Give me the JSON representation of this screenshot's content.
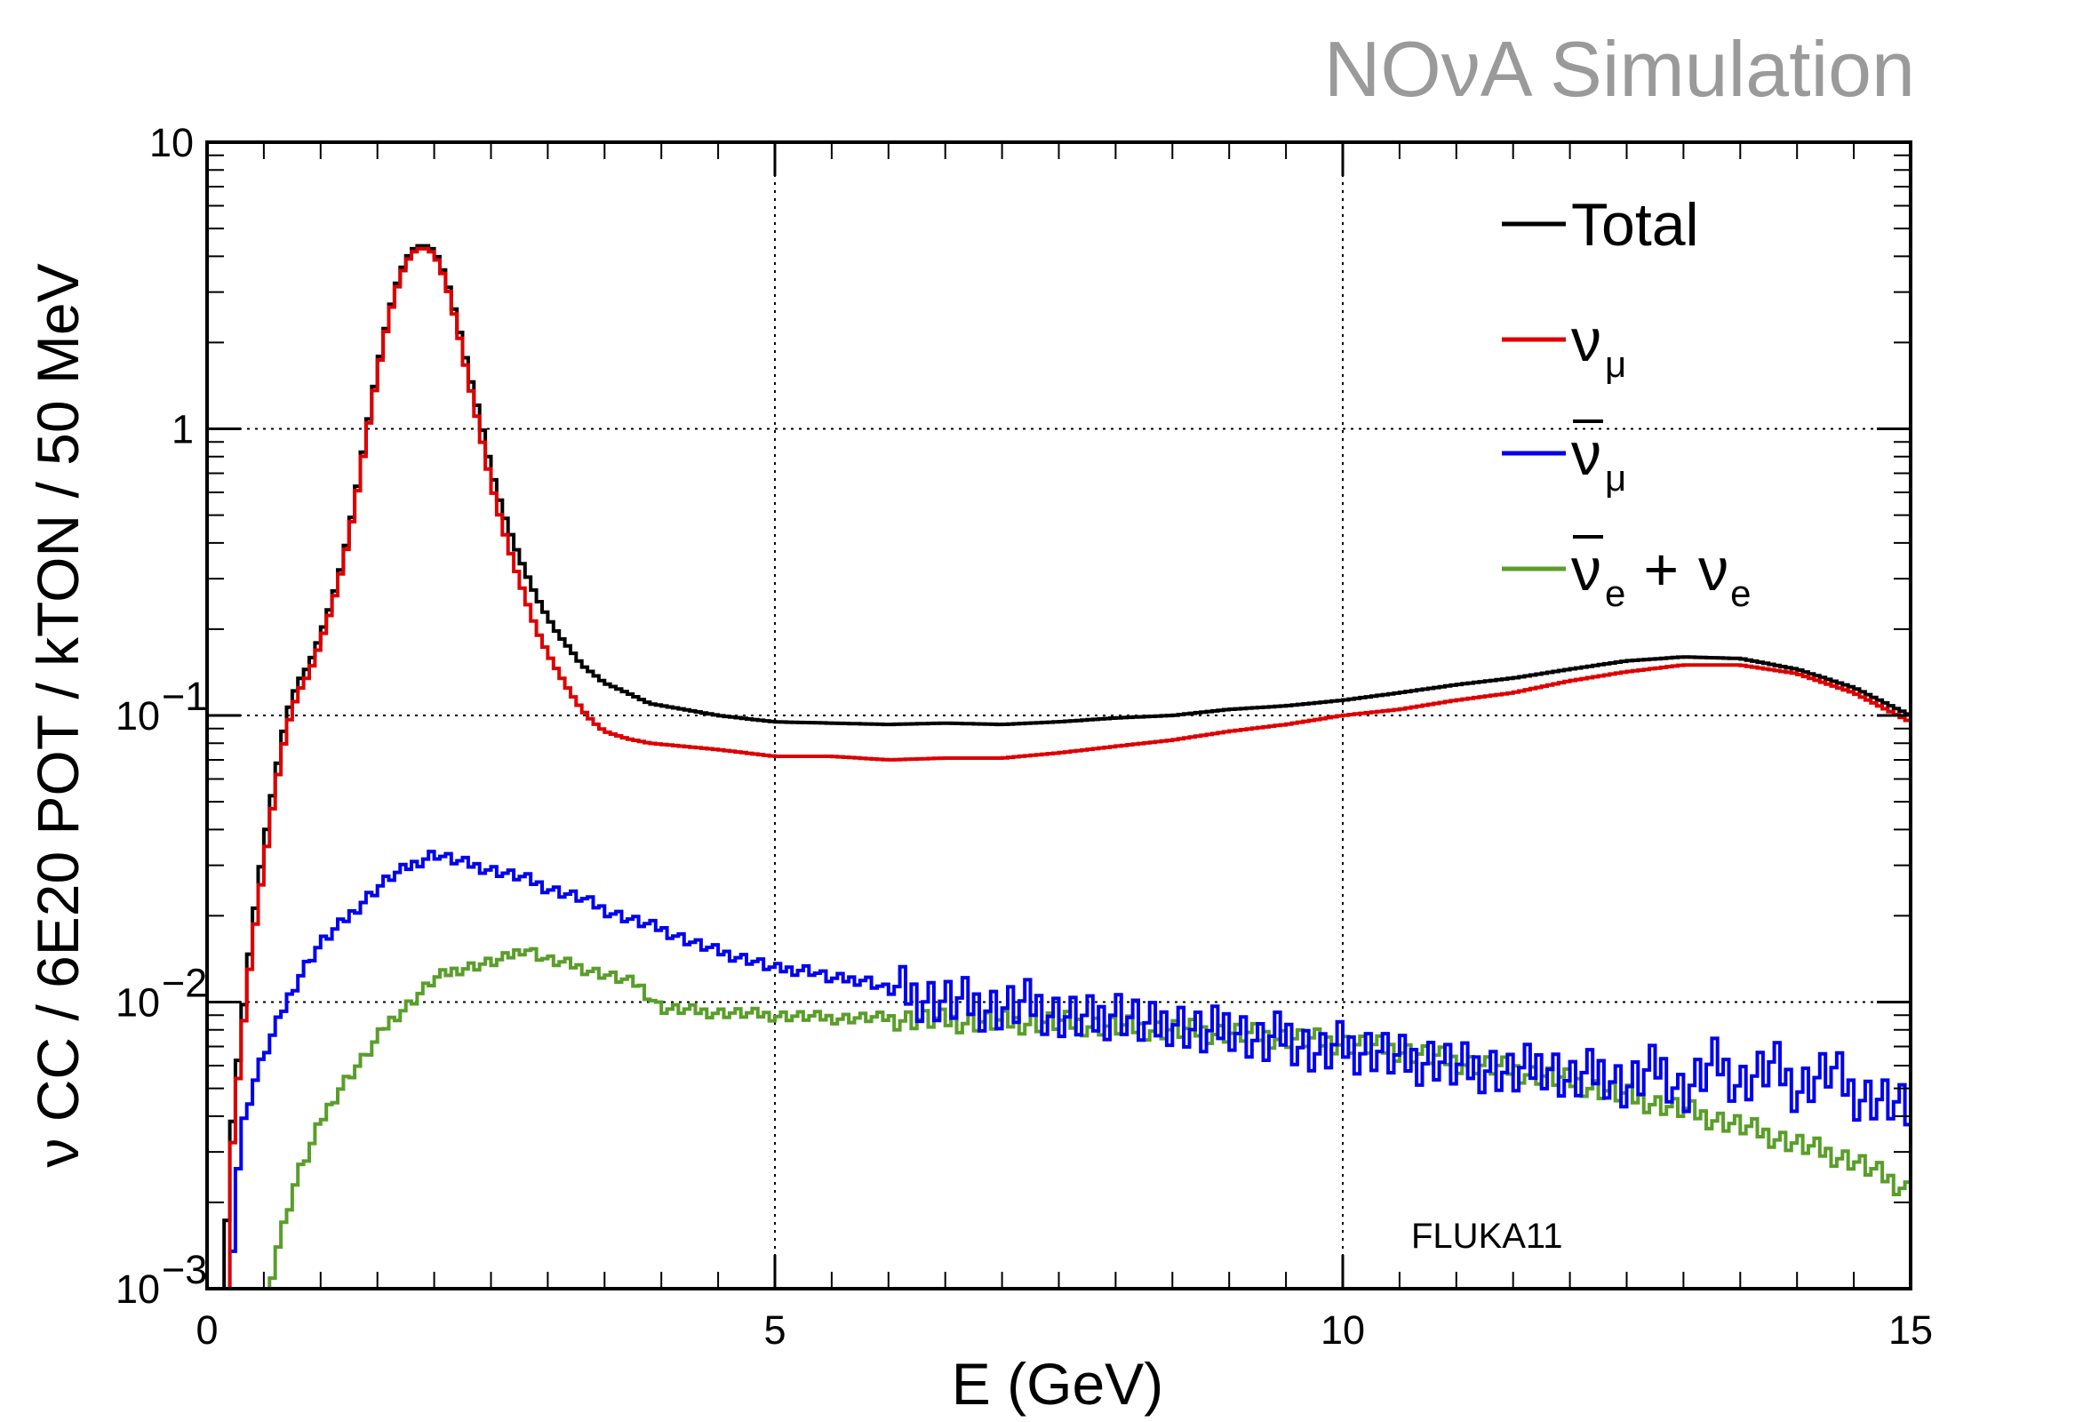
{
  "chart_data": {
    "type": "line",
    "watermark": "NOνA Simulation",
    "annotation": "FLUKA11",
    "xlabel": "E (GeV)",
    "ylabel": "ν CC / 6E20 POT / kTON / 50 MeV",
    "xlim": [
      0,
      15
    ],
    "ylim": [
      0.001,
      10
    ],
    "yscale": "log",
    "grid": true,
    "legend_position": "top-right",
    "x_ticks": [
      {
        "value": 0,
        "label": "0"
      },
      {
        "value": 5,
        "label": "5"
      },
      {
        "value": 10,
        "label": "10"
      },
      {
        "value": 15,
        "label": "15"
      }
    ],
    "y_ticks": [
      {
        "value": 10,
        "label": "10",
        "exp": ""
      },
      {
        "value": 1,
        "label": "1",
        "exp": ""
      },
      {
        "value": 0.1,
        "label": "10",
        "exp": "−1"
      },
      {
        "value": 0.01,
        "label": "10",
        "exp": "−2"
      },
      {
        "value": 0.001,
        "label": "10",
        "exp": "−3"
      }
    ],
    "series": [
      {
        "name": "Total",
        "legend_main": "Total",
        "legend_sub": "",
        "bar": false,
        "color": "#000000",
        "x": [
          0.15,
          0.2,
          0.3,
          0.4,
          0.5,
          0.6,
          0.7,
          0.8,
          0.9,
          1.0,
          1.1,
          1.2,
          1.3,
          1.4,
          1.5,
          1.6,
          1.7,
          1.8,
          1.9,
          2.0,
          2.1,
          2.2,
          2.3,
          2.4,
          2.5,
          2.6,
          2.7,
          2.8,
          2.9,
          3.0,
          3.1,
          3.2,
          3.3,
          3.4,
          3.5,
          3.7,
          3.9,
          4.2,
          4.5,
          5.0,
          5.5,
          6.0,
          6.5,
          7.0,
          7.5,
          8.0,
          8.5,
          9.0,
          9.5,
          10.0,
          10.5,
          11.0,
          11.5,
          12.0,
          12.5,
          13.0,
          13.5,
          14.0,
          14.5,
          15.0
        ],
        "y": [
          0.001,
          0.003,
          0.008,
          0.018,
          0.035,
          0.06,
          0.1,
          0.13,
          0.15,
          0.19,
          0.25,
          0.35,
          0.55,
          0.95,
          1.6,
          2.5,
          3.5,
          4.2,
          4.4,
          4.2,
          3.4,
          2.4,
          1.6,
          1.1,
          0.72,
          0.52,
          0.4,
          0.32,
          0.26,
          0.22,
          0.19,
          0.17,
          0.15,
          0.14,
          0.13,
          0.12,
          0.11,
          0.105,
          0.1,
          0.095,
          0.094,
          0.093,
          0.094,
          0.093,
          0.095,
          0.098,
          0.1,
          0.105,
          0.108,
          0.113,
          0.12,
          0.128,
          0.135,
          0.145,
          0.155,
          0.16,
          0.158,
          0.145,
          0.125,
          0.1
        ]
      },
      {
        "name": "νμ",
        "legend_main": "ν",
        "legend_sub": "μ",
        "bar": false,
        "color": "#dd0000",
        "x": [
          0.2,
          0.3,
          0.4,
          0.5,
          0.6,
          0.7,
          0.8,
          0.9,
          1.0,
          1.1,
          1.2,
          1.3,
          1.4,
          1.5,
          1.6,
          1.7,
          1.8,
          1.9,
          2.0,
          2.1,
          2.2,
          2.3,
          2.4,
          2.5,
          2.6,
          2.7,
          2.8,
          2.9,
          3.0,
          3.1,
          3.2,
          3.3,
          3.4,
          3.5,
          3.7,
          3.9,
          4.2,
          4.5,
          5.0,
          5.5,
          6.0,
          6.5,
          7.0,
          7.5,
          8.0,
          8.5,
          9.0,
          9.5,
          10.0,
          10.5,
          11.0,
          11.5,
          12.0,
          12.5,
          13.0,
          13.5,
          14.0,
          14.5,
          15.0
        ],
        "y": [
          0.0025,
          0.007,
          0.016,
          0.03,
          0.055,
          0.09,
          0.12,
          0.14,
          0.18,
          0.24,
          0.34,
          0.53,
          0.92,
          1.55,
          2.45,
          3.4,
          4.1,
          4.3,
          4.1,
          3.3,
          2.3,
          1.5,
          1.0,
          0.65,
          0.46,
          0.34,
          0.26,
          0.2,
          0.165,
          0.14,
          0.12,
          0.105,
          0.095,
          0.088,
          0.083,
          0.08,
          0.078,
          0.076,
          0.072,
          0.072,
          0.07,
          0.071,
          0.071,
          0.074,
          0.078,
          0.082,
          0.088,
          0.093,
          0.1,
          0.105,
          0.113,
          0.12,
          0.132,
          0.142,
          0.15,
          0.15,
          0.14,
          0.12,
          0.095
        ]
      },
      {
        "name": "ν̄μ",
        "legend_main": "ν",
        "legend_sub": "μ",
        "bar": true,
        "color": "#0000ee",
        "x": [
          0.2,
          0.25,
          0.3,
          0.4,
          0.5,
          0.6,
          0.7,
          0.8,
          0.9,
          1.0,
          1.2,
          1.4,
          1.6,
          1.8,
          2.0,
          2.2,
          2.5,
          2.8,
          3.0,
          3.3,
          3.5,
          3.8,
          4.0,
          4.3,
          4.5,
          4.8,
          5.0,
          5.3,
          5.5,
          5.8,
          6.0,
          6.3,
          6.5,
          6.8,
          7.0,
          7.3,
          7.5,
          7.8,
          8.0,
          8.3,
          8.5,
          8.8,
          9.0,
          9.3,
          9.5,
          9.8,
          10.0,
          10.3,
          10.5,
          10.8,
          11.0,
          11.3,
          11.5,
          11.8,
          12.0,
          12.3,
          12.5,
          12.8,
          13.0,
          13.3,
          13.5,
          13.8,
          14.0,
          14.3,
          14.5,
          14.8,
          15.0
        ],
        "y": [
          0.001,
          0.002,
          0.0035,
          0.005,
          0.0065,
          0.008,
          0.01,
          0.012,
          0.014,
          0.016,
          0.019,
          0.023,
          0.027,
          0.03,
          0.033,
          0.031,
          0.029,
          0.027,
          0.025,
          0.023,
          0.021,
          0.019,
          0.018,
          0.016,
          0.015,
          0.014,
          0.013,
          0.013,
          0.012,
          0.012,
          0.011,
          0.0105,
          0.01,
          0.0098,
          0.0095,
          0.0098,
          0.009,
          0.0085,
          0.0095,
          0.008,
          0.0088,
          0.0075,
          0.0085,
          0.007,
          0.0078,
          0.0065,
          0.007,
          0.0068,
          0.0062,
          0.0064,
          0.0058,
          0.006,
          0.0055,
          0.0062,
          0.0052,
          0.0058,
          0.005,
          0.006,
          0.0048,
          0.0062,
          0.0052,
          0.006,
          0.005,
          0.0058,
          0.0048,
          0.0045,
          0.004
        ]
      },
      {
        "name": "ν̄e + νe",
        "legend_main": "ν",
        "legend_sub": "e",
        "bar": true,
        "color": "#5a9e2a",
        "x": [
          0.55,
          0.6,
          0.7,
          0.8,
          0.9,
          1.0,
          1.1,
          1.2,
          1.4,
          1.6,
          1.8,
          2.0,
          2.2,
          2.4,
          2.6,
          2.8,
          3.0,
          3.2,
          3.5,
          3.8,
          4.0,
          4.5,
          5.0,
          5.5,
          6.0,
          6.5,
          7.0,
          7.5,
          8.0,
          8.5,
          9.0,
          9.5,
          10.0,
          10.5,
          11.0,
          11.5,
          12.0,
          12.5,
          13.0,
          13.5,
          14.0,
          14.5,
          15.0
        ],
        "y": [
          0.001,
          0.0013,
          0.0018,
          0.0025,
          0.003,
          0.0038,
          0.0045,
          0.0052,
          0.0065,
          0.0085,
          0.01,
          0.012,
          0.013,
          0.0135,
          0.014,
          0.0155,
          0.014,
          0.0135,
          0.0125,
          0.0115,
          0.0095,
          0.0092,
          0.009,
          0.0088,
          0.0088,
          0.0086,
          0.0085,
          0.0085,
          0.0082,
          0.008,
          0.0078,
          0.0075,
          0.0072,
          0.0068,
          0.0062,
          0.0058,
          0.0053,
          0.0047,
          0.0042,
          0.0037,
          0.0032,
          0.0028,
          0.0022
        ]
      }
    ]
  }
}
